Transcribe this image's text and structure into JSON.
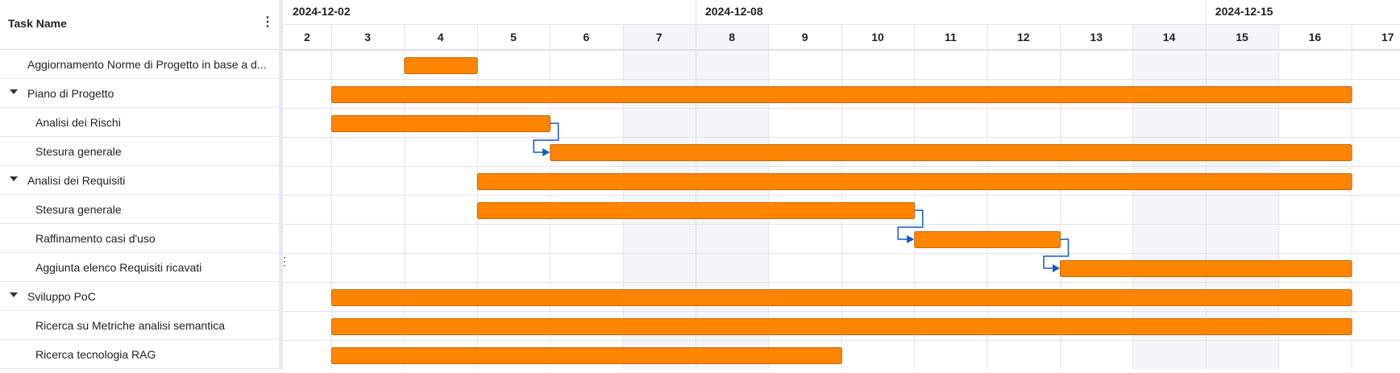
{
  "grid": {
    "header_title": "Task Name",
    "menu_icon": "more-vertical-icon",
    "rows": [
      {
        "label": "Aggiornamento Norme di Progetto in base a d...",
        "level": 0,
        "group": false
      },
      {
        "label": "Piano di Progetto",
        "level": 0,
        "group": true
      },
      {
        "label": "Analisi dei Rischi",
        "level": 1,
        "group": false
      },
      {
        "label": "Stesura generale",
        "level": 1,
        "group": false
      },
      {
        "label": "Analisi dei Requisiti",
        "level": 0,
        "group": true
      },
      {
        "label": "Stesura generale",
        "level": 1,
        "group": false
      },
      {
        "label": "Raffinamento casi d'uso",
        "level": 1,
        "group": false
      },
      {
        "label": "Aggiunta elenco Requisiti ricavati",
        "level": 1,
        "group": false
      },
      {
        "label": "Sviluppo PoC",
        "level": 0,
        "group": true
      },
      {
        "label": "Ricerca su Metriche analisi semantica",
        "level": 1,
        "group": false
      },
      {
        "label": "Ricerca tecnologia RAG",
        "level": 1,
        "group": false
      }
    ]
  },
  "colors": {
    "bar_fill": "#ff8400",
    "bar_stroke": "#c46a08",
    "link": "#1458c9",
    "weekend": "#f4f5f8",
    "grid_line": "#e1e3e8"
  },
  "chart_data": {
    "type": "gantt",
    "week_labels": [
      {
        "day": 2,
        "text": "2024-12-02"
      },
      {
        "day": 8,
        "text": "2024-12-08"
      },
      {
        "day": 15,
        "text": "2024-12-15"
      }
    ],
    "day_labels": [
      "2",
      "3",
      "4",
      "5",
      "6",
      "7",
      "8",
      "9",
      "10",
      "11",
      "12",
      "13",
      "14",
      "15",
      "16",
      "17"
    ],
    "first_day": 2,
    "weekend_days": [
      7,
      8,
      14,
      15
    ],
    "tasks": [
      {
        "name": "Aggiornamento Norme di Progetto in base a d...",
        "start": "2024-12-04",
        "end": "2024-12-05"
      },
      {
        "name": "Piano di Progetto",
        "start": "2024-12-03",
        "end": "2024-12-17"
      },
      {
        "name": "Analisi dei Rischi",
        "start": "2024-12-03",
        "end": "2024-12-06"
      },
      {
        "name": "Stesura generale",
        "start": "2024-12-06",
        "end": "2024-12-17"
      },
      {
        "name": "Analisi dei Requisiti",
        "start": "2024-12-05",
        "end": "2024-12-17"
      },
      {
        "name": "Stesura generale",
        "start": "2024-12-05",
        "end": "2024-12-11"
      },
      {
        "name": "Raffinamento casi d'uso",
        "start": "2024-12-11",
        "end": "2024-12-13"
      },
      {
        "name": "Aggiunta elenco Requisiti ricavati",
        "start": "2024-12-13",
        "end": "2024-12-17"
      },
      {
        "name": "Sviluppo PoC",
        "start": "2024-12-03",
        "end": "2024-12-17"
      },
      {
        "name": "Ricerca su Metriche analisi semantica",
        "start": "2024-12-03",
        "end": "2024-12-17"
      },
      {
        "name": "Ricerca tecnologia RAG",
        "start": "2024-12-03",
        "end": "2024-12-10"
      }
    ],
    "links": [
      {
        "from": 2,
        "to": 3
      },
      {
        "from": 5,
        "to": 6
      },
      {
        "from": 6,
        "to": 7
      }
    ]
  }
}
